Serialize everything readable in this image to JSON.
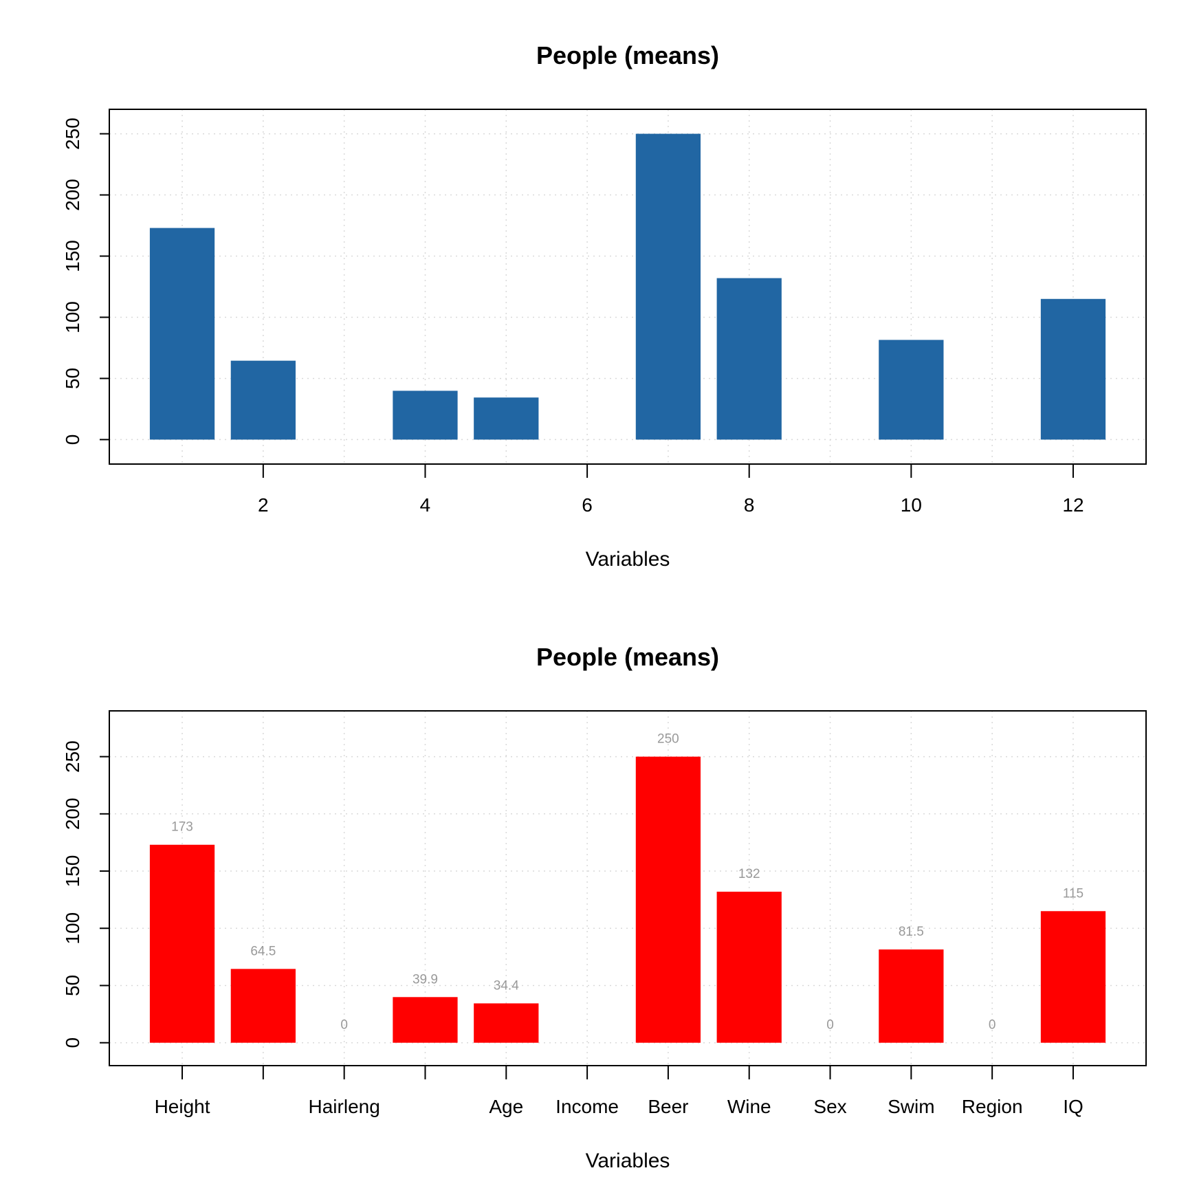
{
  "chart_data": [
    {
      "type": "bar",
      "title": "People (means)",
      "xlabel": "Variables",
      "ylabel": "",
      "x": [
        1,
        2,
        3,
        4,
        5,
        6,
        7,
        8,
        9,
        10,
        11,
        12
      ],
      "values": [
        173,
        64.5,
        0,
        39.9,
        34.4,
        0,
        250,
        132,
        0,
        81.5,
        0,
        115
      ],
      "x_ticks": [
        "2",
        "4",
        "6",
        "8",
        "10",
        "12"
      ],
      "x_tick_positions": [
        2,
        4,
        6,
        8,
        10,
        12
      ],
      "y_ticks": [
        "0",
        "50",
        "100",
        "150",
        "200",
        "250"
      ],
      "ylim": [
        -20,
        270
      ],
      "xlim": [
        0.1,
        12.9
      ],
      "grid": true,
      "bar_color": "#2166a3"
    },
    {
      "type": "bar",
      "title": "People (means)",
      "xlabel": "Variables",
      "ylabel": "",
      "categories": [
        "Height",
        "",
        "Hairleng",
        "",
        "Age",
        "Income",
        "Beer",
        "Wine",
        "Sex",
        "Swim",
        "Region",
        "IQ"
      ],
      "values": [
        173,
        64.5,
        0,
        39.9,
        34.4,
        0,
        250,
        132,
        0,
        81.5,
        0,
        115
      ],
      "data_labels": [
        "173",
        "64.5",
        "0",
        "39.9",
        "34.4",
        "",
        "250",
        "132",
        "0",
        "81.5",
        "0",
        "115"
      ],
      "y_ticks": [
        "0",
        "50",
        "100",
        "150",
        "200",
        "250"
      ],
      "ylim": [
        -20,
        290
      ],
      "xlim": [
        0.1,
        12.9
      ],
      "grid": true,
      "bar_color": "#ff0000",
      "label_color": "#999999"
    }
  ]
}
